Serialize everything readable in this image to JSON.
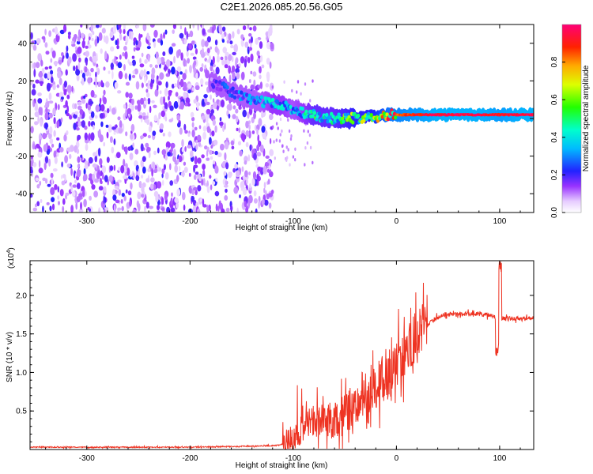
{
  "title": "C2E1.2026.085.20.56.G05",
  "chart_data": [
    {
      "type": "heatmap",
      "xlabel": "Height of straight line (km)",
      "ylabel": "Frequency (Hz)",
      "xlim": [
        -355,
        133
      ],
      "ylim": [
        -50,
        50
      ],
      "xticks": [
        -300,
        -200,
        -100,
        0,
        100
      ],
      "xtick_labels": [
        "-300",
        "-200",
        "-100",
        "0",
        "100"
      ],
      "yticks": [
        -40,
        -20,
        0,
        20,
        40
      ],
      "ytick_labels": [
        "-40",
        "-20",
        "0",
        "20",
        "40"
      ],
      "colorbar": {
        "label": "Normalized spectral amplitude",
        "range": [
          0,
          1
        ],
        "ticks": [
          0.0,
          0.2,
          0.4,
          0.6,
          0.8
        ],
        "tick_labels": [
          "0.0",
          "0.2",
          "0.4",
          "0.6",
          "0.8"
        ]
      },
      "frequency_ridge": {
        "x": [
          -180,
          -170,
          -160,
          -150,
          -140,
          -130,
          -120,
          -110,
          -100,
          -90,
          -80,
          -70,
          -60,
          -50,
          -40,
          -30,
          -20,
          -10,
          0,
          20,
          40,
          60,
          80,
          100,
          120,
          133
        ],
        "y": [
          20,
          17,
          14,
          12,
          10,
          9,
          8,
          7,
          5,
          3,
          2,
          1,
          0,
          0,
          0,
          1,
          1,
          2,
          2,
          2,
          2,
          2,
          2,
          2,
          2,
          2
        ],
        "amplitude": [
          0.15,
          0.25,
          0.25,
          0.3,
          0.3,
          0.35,
          0.4,
          0.4,
          0.35,
          0.4,
          0.5,
          0.5,
          0.5,
          0.55,
          0.6,
          0.6,
          0.65,
          0.8,
          0.85,
          0.9,
          0.95,
          0.95,
          0.95,
          0.9,
          0.95,
          0.95
        ]
      },
      "noise_region_x": [
        -355,
        -120
      ]
    },
    {
      "type": "line",
      "xlabel": "Height of straight line (km)",
      "ylabel": "SNR (10 * v/v)",
      "y_scale_label": "(x10",
      "y_scale_exponent": "4",
      "y_scale_suffix": ")",
      "xlim": [
        -355,
        133
      ],
      "ylim": [
        0,
        2.45
      ],
      "xticks": [
        -300,
        -200,
        -100,
        0,
        100
      ],
      "xtick_labels": [
        "-300",
        "-200",
        "-100",
        "0",
        "100"
      ],
      "yticks": [
        0.5,
        1.0,
        1.5,
        2.0
      ],
      "ytick_labels": [
        "0.5",
        "1.0",
        "1.5",
        "2.0"
      ],
      "series": [
        {
          "name": "SNR",
          "color": "#ee3322",
          "x": [
            -355,
            -300,
            -250,
            -200,
            -150,
            -120,
            -110,
            -100,
            -90,
            -80,
            -70,
            -60,
            -50,
            -40,
            -30,
            -20,
            -10,
            0,
            10,
            20,
            30,
            40,
            50,
            60,
            70,
            80,
            90,
            95,
            98,
            100,
            102,
            110,
            120,
            133
          ],
          "y": [
            0.03,
            0.03,
            0.03,
            0.03,
            0.04,
            0.05,
            0.07,
            0.15,
            0.3,
            0.4,
            0.35,
            0.4,
            0.45,
            0.6,
            0.75,
            0.85,
            0.95,
            1.1,
            1.3,
            1.5,
            1.62,
            1.72,
            1.76,
            1.76,
            1.76,
            1.76,
            1.74,
            1.72,
            1.7,
            1.7,
            1.7,
            1.7,
            1.7,
            1.7
          ]
        }
      ]
    }
  ]
}
